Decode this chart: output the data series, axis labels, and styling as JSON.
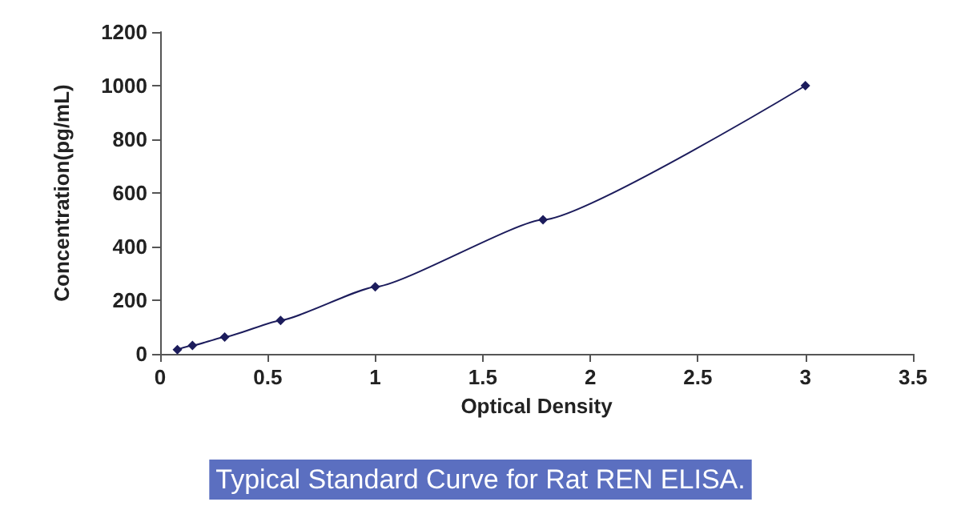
{
  "chart_data": {
    "type": "line",
    "title": "Typical Standard Curve for Rat REN ELISA.",
    "xlabel": "Optical Density",
    "ylabel": "Concentration(pg/mL)",
    "x": [
      0.08,
      0.15,
      0.3,
      0.56,
      1.0,
      1.78,
      3.0
    ],
    "series": [
      {
        "color": "#1c1c5c",
        "values": [
          16,
          31,
          63,
          125,
          250,
          500,
          1000
        ]
      }
    ],
    "xlim": [
      0,
      3.5
    ],
    "xticks": [
      0,
      0.5,
      1,
      1.5,
      2,
      2.5,
      3,
      3.5
    ],
    "ylim": [
      0,
      1200
    ],
    "yticks": [
      0,
      200,
      400,
      600,
      800,
      1000,
      1200
    ],
    "marker": "diamond",
    "line_style": "solid",
    "grid": false
  }
}
